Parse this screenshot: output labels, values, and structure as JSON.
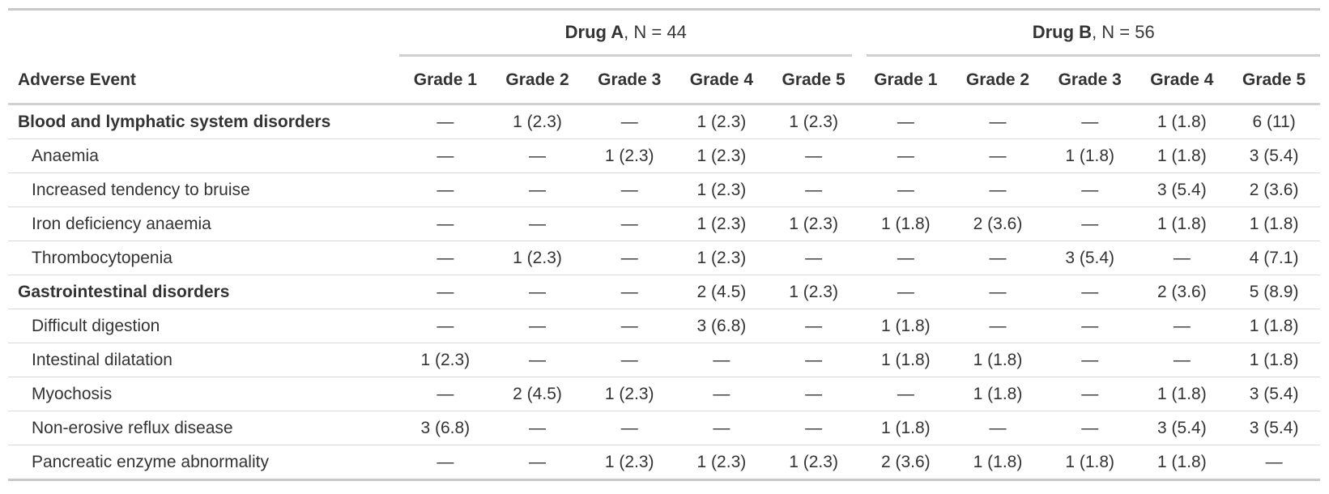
{
  "table": {
    "stub_header": "Adverse Event",
    "spanners": [
      {
        "name": "Drug A",
        "n_label": ", N = 44"
      },
      {
        "name": "Drug B",
        "n_label": ", N = 56"
      }
    ],
    "grade_headers": [
      "Grade 1",
      "Grade 2",
      "Grade 3",
      "Grade 4",
      "Grade 5"
    ],
    "rows": [
      {
        "label": "Blood and lymphatic system disorders",
        "level": "group",
        "values": [
          "—",
          "1 (2.3)",
          "—",
          "1 (2.3)",
          "1 (2.3)",
          "—",
          "—",
          "—",
          "1 (1.8)",
          "6 (11)"
        ]
      },
      {
        "label": "Anaemia",
        "level": "sub",
        "values": [
          "—",
          "—",
          "1 (2.3)",
          "1 (2.3)",
          "—",
          "—",
          "—",
          "1 (1.8)",
          "1 (1.8)",
          "3 (5.4)"
        ]
      },
      {
        "label": "Increased tendency to bruise",
        "level": "sub",
        "values": [
          "—",
          "—",
          "—",
          "1 (2.3)",
          "—",
          "—",
          "—",
          "—",
          "3 (5.4)",
          "2 (3.6)"
        ]
      },
      {
        "label": "Iron deficiency anaemia",
        "level": "sub",
        "values": [
          "—",
          "—",
          "—",
          "1 (2.3)",
          "1 (2.3)",
          "1 (1.8)",
          "2 (3.6)",
          "—",
          "1 (1.8)",
          "1 (1.8)"
        ]
      },
      {
        "label": "Thrombocytopenia",
        "level": "sub",
        "values": [
          "—",
          "1 (2.3)",
          "—",
          "1 (2.3)",
          "—",
          "—",
          "—",
          "3 (5.4)",
          "—",
          "4 (7.1)"
        ]
      },
      {
        "label": "Gastrointestinal disorders",
        "level": "group",
        "values": [
          "—",
          "—",
          "—",
          "2 (4.5)",
          "1 (2.3)",
          "—",
          "—",
          "—",
          "2 (3.6)",
          "5 (8.9)"
        ]
      },
      {
        "label": "Difficult digestion",
        "level": "sub",
        "values": [
          "—",
          "—",
          "—",
          "3 (6.8)",
          "—",
          "1 (1.8)",
          "—",
          "—",
          "—",
          "1 (1.8)"
        ]
      },
      {
        "label": "Intestinal dilatation",
        "level": "sub",
        "values": [
          "1 (2.3)",
          "—",
          "—",
          "—",
          "—",
          "1 (1.8)",
          "1 (1.8)",
          "—",
          "—",
          "1 (1.8)"
        ]
      },
      {
        "label": "Myochosis",
        "level": "sub",
        "values": [
          "—",
          "2 (4.5)",
          "1 (2.3)",
          "—",
          "—",
          "—",
          "1 (1.8)",
          "—",
          "1 (1.8)",
          "3 (5.4)"
        ]
      },
      {
        "label": "Non-erosive reflux disease",
        "level": "sub",
        "values": [
          "3 (6.8)",
          "—",
          "—",
          "—",
          "—",
          "1 (1.8)",
          "—",
          "—",
          "3 (5.4)",
          "3 (5.4)"
        ]
      },
      {
        "label": "Pancreatic enzyme abnormality",
        "level": "sub",
        "values": [
          "—",
          "—",
          "1 (2.3)",
          "1 (2.3)",
          "1 (2.3)",
          "2 (3.6)",
          "1 (1.8)",
          "1 (1.8)",
          "1 (1.8)",
          "—"
        ]
      }
    ]
  },
  "colors": {
    "text": "#333333",
    "heavy_rule": "#c9c9c9",
    "light_rule": "#d9d9d9"
  }
}
